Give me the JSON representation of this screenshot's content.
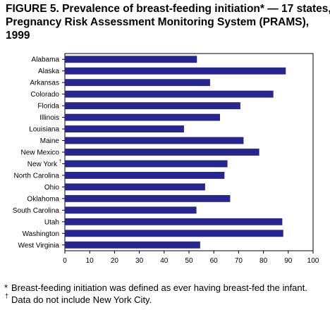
{
  "title": {
    "line1": "FIGURE 5. Prevalence of breast-feeding initiation* — 17 states,",
    "line2": "Pregnancy Risk Assessment Monitoring System (PRAMS),",
    "line3": "1999"
  },
  "footnotes": [
    {
      "symbol": "*",
      "text": "Breast-feeding initiation was defined as ever having breast-fed the infant."
    },
    {
      "symbol": "†",
      "text": "Data do not include New York City."
    }
  ],
  "colors": {
    "bar": "#262691",
    "axis": "#000000"
  },
  "chart_data": {
    "type": "bar",
    "orientation": "horizontal",
    "categories": [
      "Alabama",
      "Alaska",
      "Arkansas",
      "Colorado",
      "Florida",
      "Illinois",
      "Louisiana",
      "Maine",
      "New Mexico",
      "New York",
      "North Carolina",
      "Ohio",
      "Oklahoma",
      "South Carolina",
      "Utah",
      "Washington",
      "West Virginia"
    ],
    "category_marks": {
      "New York": "†"
    },
    "values": [
      53.2,
      89.0,
      58.5,
      84.0,
      70.7,
      62.5,
      48.0,
      72.0,
      78.3,
      65.5,
      64.3,
      56.5,
      66.6,
      53.0,
      87.6,
      88.0,
      54.5
    ],
    "xlim": [
      0,
      100
    ],
    "xticks": [
      0,
      10,
      20,
      30,
      40,
      50,
      60,
      70,
      80,
      90,
      100
    ],
    "grid": false,
    "title": "FIGURE 5. Prevalence of breast-feeding initiation* — 17 states, Pregnancy Risk Assessment Monitoring System (PRAMS), 1999",
    "xlabel": "",
    "ylabel": ""
  }
}
